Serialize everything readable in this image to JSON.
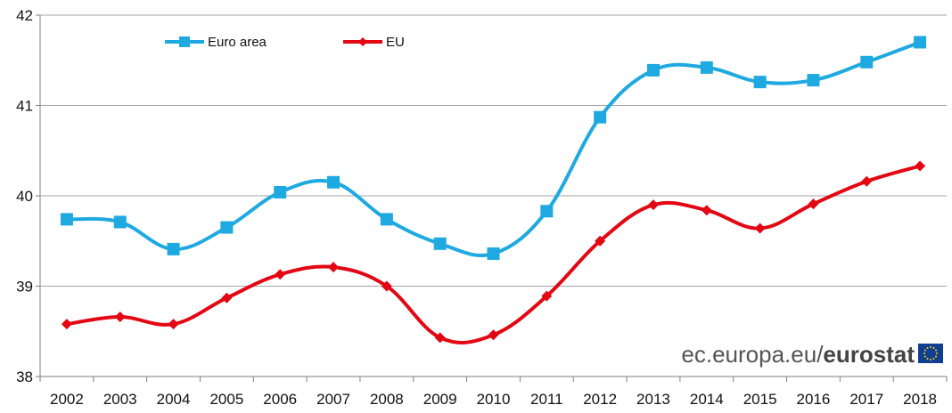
{
  "chart_data": {
    "type": "line",
    "title": "",
    "xlabel": "",
    "ylabel": "",
    "x": [
      "2002",
      "2003",
      "2004",
      "2005",
      "2006",
      "2007",
      "2008",
      "2009",
      "2010",
      "2011",
      "2012",
      "2013",
      "2014",
      "2015",
      "2016",
      "2017",
      "2018"
    ],
    "ylim": [
      38,
      42
    ],
    "yticks": [
      "38",
      "39",
      "40",
      "41",
      "42"
    ],
    "grid": true,
    "legend_position": "top-left",
    "series": [
      {
        "name": "Euro area",
        "color": "#1fa9e1",
        "marker": "square",
        "values": [
          39.74,
          39.71,
          39.41,
          39.65,
          40.04,
          40.15,
          39.74,
          39.47,
          39.36,
          39.83,
          40.87,
          41.39,
          41.42,
          41.26,
          41.28,
          41.48,
          41.7
        ]
      },
      {
        "name": "EU",
        "color": "#e30613",
        "marker": "diamond",
        "values": [
          38.58,
          38.66,
          38.58,
          38.87,
          39.13,
          39.21,
          39.0,
          38.43,
          38.46,
          38.89,
          39.5,
          39.9,
          39.84,
          39.64,
          39.91,
          40.16,
          40.33
        ]
      }
    ]
  },
  "watermark": {
    "prefix": "ec.europa.eu/",
    "brand": "eurostat",
    "logo_icon": "eu-flag-icon"
  }
}
